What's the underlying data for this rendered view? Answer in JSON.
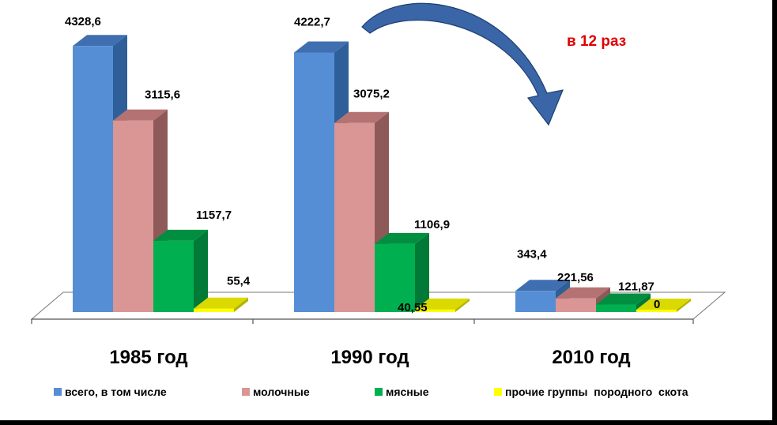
{
  "chart_data": {
    "type": "bar",
    "categories": [
      "1985 год",
      "1990 год",
      "2010 год"
    ],
    "series": [
      {
        "name": "всего, в том числе",
        "values": [
          4328.6,
          4222.7,
          343.4
        ],
        "labels": [
          "4328,6",
          "4222,7",
          "343,4"
        ],
        "color": "#558ED5",
        "side": "#2E5F99",
        "top": "#3F6FB0"
      },
      {
        "name": "молочные",
        "values": [
          3115.6,
          3075.2,
          221.56
        ],
        "labels": [
          "3115,6",
          "3075,2",
          "221,56"
        ],
        "color": "#D99694",
        "side": "#8E5A59",
        "top": "#B47372"
      },
      {
        "name": "мясные",
        "values": [
          1157.7,
          1106.9,
          121.87
        ],
        "labels": [
          "1157,7",
          "1106,9",
          "121,87"
        ],
        "color": "#00B050",
        "side": "#007A36",
        "top": "#008F40"
      },
      {
        "name": "прочие группы  породного  скота",
        "values": [
          55.4,
          40.55,
          0
        ],
        "labels": [
          "55,4",
          "40,55",
          "0"
        ],
        "color": "#FFFF00",
        "side": "#B3B300",
        "top": "#DADA00"
      }
    ],
    "ylim": [
      0,
      4400
    ],
    "legend_position": "bottom",
    "grid": false
  },
  "annotation": {
    "text": "в 12 раз",
    "color": "#E00000"
  },
  "colors": {
    "zero_label": "#FF0000",
    "arrow": "#3A66A8"
  }
}
